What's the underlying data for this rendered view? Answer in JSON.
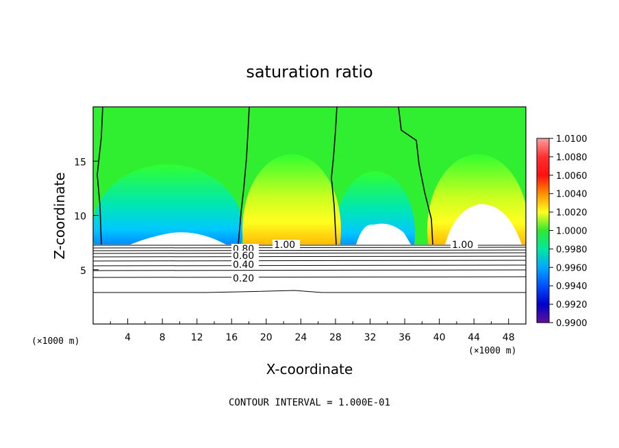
{
  "chart_data": {
    "type": "heatmap",
    "title": "saturation ratio",
    "xlabel": "X-coordinate",
    "ylabel": "Z-coordinate",
    "x_unit": "(×1000 m)",
    "x_unit_right": "(×1000 m)",
    "xlim": [
      0,
      50
    ],
    "ylim": [
      0,
      20
    ],
    "x_ticks": [
      4,
      8,
      12,
      16,
      20,
      24,
      28,
      32,
      36,
      40,
      44,
      48
    ],
    "y_ticks": [
      5,
      10,
      15
    ],
    "colorbar": {
      "min": 0.99,
      "max": 1.01,
      "labels": [
        "1.0100",
        "1.0080",
        "1.0060",
        "1.0040",
        "1.0020",
        "1.0000",
        "0.9980",
        "0.9960",
        "0.9940",
        "0.9920",
        "0.9900"
      ],
      "colors": [
        "#ff9f9f",
        "#ff4040",
        "#ff1010",
        "#ff8000",
        "#ffd700",
        "#ffff20",
        "#c8ff20",
        "#00dd00",
        "#30ff30",
        "#00e8b0",
        "#00d0ff",
        "#0080ff",
        "#0030ff",
        "#0000b0",
        "#6010a0"
      ]
    },
    "contours": [
      {
        "label": "1.00",
        "z": 7.2
      },
      {
        "label": "0.80",
        "z": 6.8
      },
      {
        "label": "0.60",
        "z": 6.4
      },
      {
        "label": "0.40",
        "z": 5.5
      },
      {
        "label": "0.20",
        "z": 4.4
      }
    ],
    "footer": "CONTOUR INTERVAL = 1.000E-01"
  }
}
